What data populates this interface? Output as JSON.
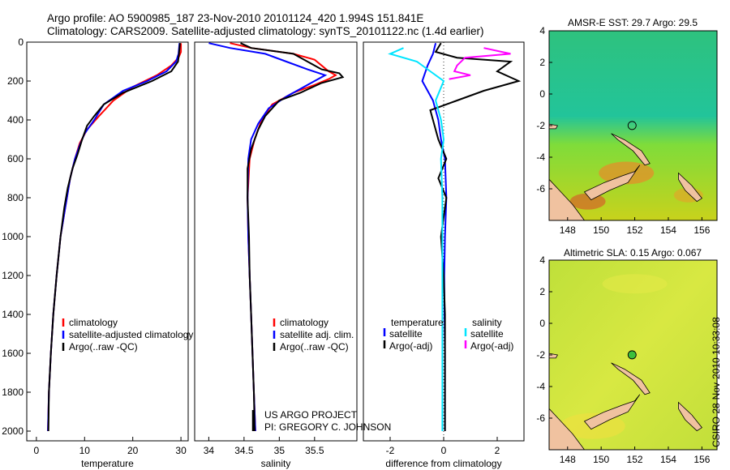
{
  "header": {
    "line1": "Argo profile: AO 5900985_187 23-Nov-2010 20101124_420 1.994S 151.841E",
    "line2": "Climatology: CARS2009. Satellite-adjusted climatology: synTS_20101122.nc (1.4d earlier)"
  },
  "colors": {
    "climatology": "#ff0000",
    "satellite": "#0000ff",
    "argo": "#000000",
    "diff_sat_sal": "#00e5ff",
    "diff_argo_sal": "#ff00ff"
  },
  "credits": {
    "line1": "US ARGO PROJECT",
    "line2": "PI: GREGORY C. JOHNSON"
  },
  "stamp": "CSIRO 28-Nov-2010 10:33:08",
  "chart_data": [
    {
      "type": "line",
      "xlabel": "temperature",
      "ylabel": "",
      "xlim": [
        -2,
        31.5
      ],
      "ylim": [
        2050,
        0
      ],
      "xticks": [
        0,
        10,
        20,
        30
      ],
      "yticks": [
        0,
        200,
        400,
        600,
        800,
        1000,
        1200,
        1400,
        1600,
        1800,
        2000
      ],
      "legend": [
        "climatology",
        "satellite-adjusted climatology",
        "Argo(..raw -QC)"
      ],
      "series": [
        {
          "name": "climatology",
          "values": [
            [
              30,
              5
            ],
            [
              30,
              50
            ],
            [
              29.5,
              80
            ],
            [
              28,
              120
            ],
            [
              25,
              170
            ],
            [
              20,
              230
            ],
            [
              16,
              300
            ],
            [
              13,
              380
            ],
            [
              10.5,
              450
            ],
            [
              9,
              520
            ],
            [
              8,
              600
            ],
            [
              7,
              700
            ],
            [
              6,
              850
            ],
            [
              5,
              1000
            ],
            [
              4.2,
              1200
            ],
            [
              3.5,
              1400
            ],
            [
              3,
              1600
            ],
            [
              2.6,
              1800
            ],
            [
              2.4,
              2000
            ]
          ]
        },
        {
          "name": "satellite-adjusted climatology",
          "values": [
            [
              29.7,
              5
            ],
            [
              29.5,
              60
            ],
            [
              29,
              100
            ],
            [
              27,
              150
            ],
            [
              23,
              200
            ],
            [
              18,
              250
            ],
            [
              14,
              320
            ],
            [
              12,
              400
            ],
            [
              10,
              470
            ],
            [
              9,
              530
            ],
            [
              8,
              600
            ],
            [
              7,
              700
            ],
            [
              6,
              850
            ],
            [
              5,
              1000
            ],
            [
              4.2,
              1200
            ],
            [
              3.5,
              1400
            ],
            [
              3,
              1600
            ],
            [
              2.6,
              1800
            ],
            [
              2.4,
              2000
            ]
          ]
        },
        {
          "name": "Argo(..raw -QC)",
          "values": [
            [
              29.8,
              5
            ],
            [
              29.6,
              60
            ],
            [
              29.4,
              100
            ],
            [
              28,
              150
            ],
            [
              24,
              200
            ],
            [
              18,
              260
            ],
            [
              14,
              320
            ],
            [
              12,
              380
            ],
            [
              10.5,
              430
            ],
            [
              9.5,
              500
            ],
            [
              8.5,
              580
            ],
            [
              7.5,
              650
            ],
            [
              6.5,
              750
            ],
            [
              5.8,
              850
            ],
            [
              5,
              1000
            ],
            [
              4.2,
              1200
            ],
            [
              3.5,
              1400
            ],
            [
              3,
              1600
            ],
            [
              2.6,
              1800
            ],
            [
              2.5,
              2000
            ]
          ]
        }
      ]
    },
    {
      "type": "line",
      "xlabel": "salinity",
      "ylabel": "",
      "xlim": [
        33.8,
        36.1
      ],
      "ylim": [
        2050,
        0
      ],
      "xticks": [
        34,
        34.5,
        35,
        35.5
      ],
      "yticks": [],
      "legend": [
        "climatology",
        "satellite adj. clim.",
        "Argo(..raw -QC)"
      ],
      "series": [
        {
          "name": "climatology",
          "values": [
            [
              34.3,
              5
            ],
            [
              34.6,
              30
            ],
            [
              35.2,
              60
            ],
            [
              35.5,
              90
            ],
            [
              35.6,
              120
            ],
            [
              35.7,
              150
            ],
            [
              35.8,
              170
            ],
            [
              35.7,
              190
            ],
            [
              35.5,
              220
            ],
            [
              35.2,
              260
            ],
            [
              34.9,
              320
            ],
            [
              34.75,
              400
            ],
            [
              34.65,
              500
            ],
            [
              34.58,
              600
            ],
            [
              34.55,
              800
            ],
            [
              34.56,
              1000
            ],
            [
              34.58,
              1200
            ],
            [
              34.6,
              1400
            ],
            [
              34.62,
              1600
            ],
            [
              34.64,
              1800
            ],
            [
              34.66,
              2000
            ]
          ]
        },
        {
          "name": "satellite adj. clim.",
          "values": [
            [
              34.0,
              5
            ],
            [
              34.3,
              30
            ],
            [
              34.8,
              60
            ],
            [
              35.1,
              100
            ],
            [
              35.4,
              140
            ],
            [
              35.65,
              170
            ],
            [
              35.5,
              200
            ],
            [
              35.3,
              240
            ],
            [
              35.1,
              280
            ],
            [
              34.85,
              340
            ],
            [
              34.7,
              420
            ],
            [
              34.6,
              500
            ],
            [
              34.56,
              600
            ],
            [
              34.55,
              800
            ],
            [
              34.56,
              1000
            ],
            [
              34.58,
              1200
            ],
            [
              34.6,
              1400
            ],
            [
              34.62,
              1600
            ],
            [
              34.64,
              1800
            ],
            [
              34.66,
              2000
            ]
          ]
        },
        {
          "name": "Argo(..raw -QC)",
          "values": [
            [
              34.45,
              5
            ],
            [
              34.6,
              30
            ],
            [
              35.2,
              60
            ],
            [
              35.4,
              100
            ],
            [
              35.6,
              140
            ],
            [
              35.85,
              160
            ],
            [
              35.9,
              180
            ],
            [
              35.6,
              210
            ],
            [
              35.3,
              260
            ],
            [
              35.0,
              300
            ],
            [
              34.8,
              380
            ],
            [
              34.7,
              450
            ],
            [
              34.6,
              550
            ],
            [
              34.55,
              650
            ],
            [
              34.55,
              800
            ],
            [
              34.57,
              1000
            ],
            [
              34.58,
              1200
            ],
            [
              34.6,
              1400
            ],
            [
              34.62,
              1600
            ],
            [
              34.64,
              1800
            ],
            [
              34.65,
              2000
            ]
          ]
        }
      ]
    },
    {
      "type": "line",
      "xlabel": "difference from climatology",
      "ylabel": "",
      "xlim": [
        -3,
        3
      ],
      "ylim": [
        2050,
        0
      ],
      "xticks": [
        -2,
        0,
        2
      ],
      "yticks": [],
      "legend": [
        "temperature",
        "satellite",
        "Argo(-adj)",
        "salinity",
        "satellite",
        "Argo(-adj)"
      ],
      "series": [
        {
          "name": "satellite",
          "values": [
            [
              -0.3,
              5
            ],
            [
              -0.4,
              60
            ],
            [
              -0.6,
              120
            ],
            [
              -0.8,
              200
            ],
            [
              -0.4,
              300
            ],
            [
              -0.2,
              400
            ],
            [
              -0.1,
              500
            ],
            [
              0.05,
              600
            ],
            [
              0.1,
              800
            ],
            [
              0.05,
              1000
            ],
            [
              0.02,
              1200
            ],
            [
              0.03,
              1400
            ],
            [
              0.05,
              1600
            ],
            [
              0.05,
              1800
            ],
            [
              0.05,
              2000
            ]
          ]
        },
        {
          "name": "Argo(-adj)",
          "values": [
            [
              -0.1,
              5
            ],
            [
              -0.3,
              50
            ],
            [
              0.5,
              80
            ],
            [
              2.5,
              100
            ],
            [
              2.0,
              150
            ],
            [
              2.8,
              200
            ],
            [
              1.5,
              250
            ],
            [
              0.5,
              300
            ],
            [
              -0.5,
              350
            ],
            [
              -0.2,
              500
            ],
            [
              0.1,
              600
            ],
            [
              -0.2,
              700
            ],
            [
              0.1,
              800
            ],
            [
              -0.1,
              1000
            ],
            [
              0.0,
              1200
            ],
            [
              0.05,
              1400
            ],
            [
              0.05,
              1600
            ],
            [
              0.05,
              1800
            ],
            [
              0.05,
              2000
            ]
          ]
        },
        {
          "name": "satellite",
          "values": [
            [
              -1.5,
              30
            ],
            [
              -2.0,
              60
            ],
            [
              -1.0,
              100
            ],
            [
              -0.5,
              150
            ],
            [
              0.0,
              200
            ],
            [
              -0.3,
              300
            ],
            [
              -0.1,
              400
            ],
            [
              0.0,
              500
            ],
            [
              -0.1,
              600
            ],
            [
              -0.05,
              800
            ],
            [
              -0.05,
              1000
            ],
            [
              -0.05,
              1200
            ],
            [
              -0.05,
              1400
            ],
            [
              -0.05,
              1600
            ],
            [
              -0.05,
              1800
            ],
            [
              -0.05,
              2000
            ]
          ]
        },
        {
          "name": "Argo(-adj)",
          "values": [
            [
              1.5,
              30
            ],
            [
              2.5,
              60
            ],
            [
              0.8,
              80
            ],
            [
              0.5,
              120
            ],
            [
              0.4,
              150
            ],
            [
              1.0,
              170
            ],
            [
              0.2,
              190
            ]
          ]
        }
      ]
    },
    {
      "type": "heatmap",
      "title": "AMSR-E SST: 29.7 Argo: 29.5",
      "xlim": [
        146.9,
        156.9
      ],
      "ylim": [
        -8,
        4
      ],
      "xticks": [
        148,
        150,
        152,
        154,
        156
      ],
      "yticks": [
        -6,
        -4,
        -2,
        0,
        2,
        4
      ],
      "marker": [
        151.841,
        -1.994
      ]
    },
    {
      "type": "heatmap",
      "title": "Altimetric SLA: 0.15 Argo: 0.067",
      "xlim": [
        146.9,
        156.9
      ],
      "ylim": [
        -8,
        4
      ],
      "xticks": [
        148,
        150,
        152,
        154,
        156
      ],
      "yticks": [
        -6,
        -4,
        -2,
        0,
        2,
        4
      ],
      "marker": [
        151.841,
        -1.994
      ]
    }
  ]
}
